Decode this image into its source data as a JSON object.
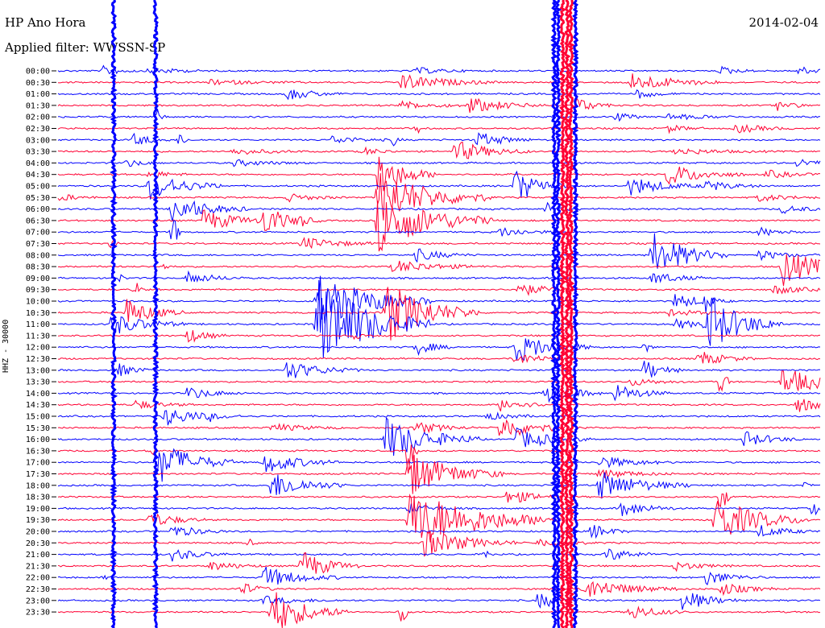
{
  "header": {
    "title": "HP Ano Hora",
    "filter": "Applied filter: WWSSN-SP",
    "date": "2014-02-04"
  },
  "colors": {
    "odd": "#0000ff",
    "even": "#ff0033",
    "background": "#ffffff"
  },
  "chart_data": {
    "type": "line",
    "title": "HP Ano Hora",
    "subtitle": "Applied filter: WWSSN-SP",
    "ylabel": "HHZ - 30000",
    "date": "2014-02-04",
    "row_labels": [
      "00:00",
      "00:30",
      "01:00",
      "01:30",
      "02:00",
      "02:30",
      "03:00",
      "03:30",
      "04:00",
      "04:30",
      "05:00",
      "05:30",
      "06:00",
      "06:30",
      "07:00",
      "07:30",
      "08:00",
      "08:30",
      "09:00",
      "09:30",
      "10:00",
      "10:30",
      "11:00",
      "11:30",
      "12:00",
      "12:30",
      "13:00",
      "13:30",
      "14:00",
      "14:30",
      "15:00",
      "15:30",
      "16:00",
      "16:30",
      "17:00",
      "17:30",
      "18:00",
      "18:30",
      "19:00",
      "19:30",
      "20:00",
      "20:30",
      "21:00",
      "21:30",
      "22:00",
      "22:30",
      "23:00",
      "23:30"
    ],
    "series_colors": [
      "#0000ff",
      "#ff0033"
    ],
    "grid": false,
    "events": [
      {
        "row": 0,
        "x": 0.06,
        "amp": 6,
        "dur": 0.02
      },
      {
        "row": 0,
        "x": 0.12,
        "amp": 5,
        "dur": 0.03
      },
      {
        "row": 0,
        "x": 0.47,
        "amp": 4,
        "dur": 0.03
      },
      {
        "row": 0,
        "x": 0.87,
        "amp": 5,
        "dur": 0.02
      },
      {
        "row": 0,
        "x": 0.97,
        "amp": 5,
        "dur": 0.03
      },
      {
        "row": 1,
        "x": 0.45,
        "amp": 10,
        "dur": 0.05
      },
      {
        "row": 1,
        "x": 0.75,
        "amp": 12,
        "dur": 0.05
      },
      {
        "row": 1,
        "x": 0.2,
        "amp": 3,
        "dur": 0.05
      },
      {
        "row": 2,
        "x": 0.3,
        "amp": 8,
        "dur": 0.03
      },
      {
        "row": 2,
        "x": 0.76,
        "amp": 6,
        "dur": 0.02
      },
      {
        "row": 3,
        "x": 0.54,
        "amp": 10,
        "dur": 0.04
      },
      {
        "row": 3,
        "x": 0.45,
        "amp": 5,
        "dur": 0.04
      },
      {
        "row": 3,
        "x": 0.68,
        "amp": 10,
        "dur": 0.02
      },
      {
        "row": 3,
        "x": 0.94,
        "amp": 7,
        "dur": 0.02
      },
      {
        "row": 4,
        "x": 0.73,
        "amp": 6,
        "dur": 0.02
      },
      {
        "row": 4,
        "x": 0.8,
        "amp": 4,
        "dur": 0.04
      },
      {
        "row": 4,
        "x": 0.13,
        "amp": 10,
        "dur": 0.005
      },
      {
        "row": 5,
        "x": 0.47,
        "amp": 10,
        "dur": 0.005
      },
      {
        "row": 5,
        "x": 0.89,
        "amp": 6,
        "dur": 0.03
      },
      {
        "row": 5,
        "x": 0.8,
        "amp": 5,
        "dur": 0.02
      },
      {
        "row": 6,
        "x": 0.1,
        "amp": 8,
        "dur": 0.02
      },
      {
        "row": 6,
        "x": 0.16,
        "amp": 12,
        "dur": 0.005
      },
      {
        "row": 6,
        "x": 0.36,
        "amp": 5,
        "dur": 0.03
      },
      {
        "row": 6,
        "x": 0.55,
        "amp": 10,
        "dur": 0.03
      },
      {
        "row": 6,
        "x": 0.44,
        "amp": 8,
        "dur": 0.005
      },
      {
        "row": 7,
        "x": 0.4,
        "amp": 5,
        "dur": 0.02
      },
      {
        "row": 7,
        "x": 0.23,
        "amp": 4,
        "dur": 0.04
      },
      {
        "row": 7,
        "x": 0.52,
        "amp": 14,
        "dur": 0.04
      },
      {
        "row": 7,
        "x": 0.81,
        "amp": 4,
        "dur": 0.05
      },
      {
        "row": 8,
        "x": 0.09,
        "amp": 5,
        "dur": 0.02
      },
      {
        "row": 8,
        "x": 0.23,
        "amp": 4,
        "dur": 0.04
      },
      {
        "row": 8,
        "x": 0.97,
        "amp": 5,
        "dur": 0.03
      },
      {
        "row": 9,
        "x": 0.12,
        "amp": 6,
        "dur": 0.02
      },
      {
        "row": 9,
        "x": 0.42,
        "amp": 30,
        "dur": 0.03
      },
      {
        "row": 9,
        "x": 0.8,
        "amp": 14,
        "dur": 0.04
      },
      {
        "row": 9,
        "x": 0.93,
        "amp": 5,
        "dur": 0.03
      },
      {
        "row": 10,
        "x": 0.12,
        "amp": 18,
        "dur": 0.04
      },
      {
        "row": 10,
        "x": 0.6,
        "amp": 22,
        "dur": 0.03
      },
      {
        "row": 10,
        "x": 0.75,
        "amp": 12,
        "dur": 0.04
      },
      {
        "row": 10,
        "x": 0.85,
        "amp": 7,
        "dur": 0.03
      },
      {
        "row": 11,
        "x": 0.0,
        "amp": 5,
        "dur": 0.02
      },
      {
        "row": 11,
        "x": 0.3,
        "amp": 5,
        "dur": 0.03
      },
      {
        "row": 11,
        "x": 0.42,
        "amp": 35,
        "dur": 0.06
      },
      {
        "row": 11,
        "x": 0.92,
        "amp": 5,
        "dur": 0.03
      },
      {
        "row": 12,
        "x": 0.64,
        "amp": 8,
        "dur": 0.02
      },
      {
        "row": 12,
        "x": 0.15,
        "amp": 18,
        "dur": 0.04
      },
      {
        "row": 12,
        "x": 0.95,
        "amp": 5,
        "dur": 0.03
      },
      {
        "row": 13,
        "x": 0.19,
        "amp": 14,
        "dur": 0.04
      },
      {
        "row": 13,
        "x": 0.27,
        "amp": 18,
        "dur": 0.03
      },
      {
        "row": 13,
        "x": 0.42,
        "amp": 40,
        "dur": 0.06
      },
      {
        "row": 13,
        "x": 0.32,
        "amp": 6,
        "dur": 0.005
      },
      {
        "row": 14,
        "x": 0.15,
        "amp": 30,
        "dur": 0.005
      },
      {
        "row": 14,
        "x": 0.58,
        "amp": 6,
        "dur": 0.03
      },
      {
        "row": 14,
        "x": 0.92,
        "amp": 6,
        "dur": 0.02
      },
      {
        "row": 15,
        "x": 0.07,
        "amp": 8,
        "dur": 0.005
      },
      {
        "row": 15,
        "x": 0.32,
        "amp": 8,
        "dur": 0.04
      },
      {
        "row": 16,
        "x": 0.78,
        "amp": 30,
        "dur": 0.04
      },
      {
        "row": 16,
        "x": 0.47,
        "amp": 8,
        "dur": 0.03
      },
      {
        "row": 16,
        "x": 0.92,
        "amp": 6,
        "dur": 0.03
      },
      {
        "row": 17,
        "x": 0.95,
        "amp": 25,
        "dur": 0.04
      },
      {
        "row": 17,
        "x": 0.44,
        "amp": 8,
        "dur": 0.05
      },
      {
        "row": 17,
        "x": 0.14,
        "amp": 5,
        "dur": 0.005
      },
      {
        "row": 18,
        "x": 0.17,
        "amp": 8,
        "dur": 0.03
      },
      {
        "row": 18,
        "x": 0.08,
        "amp": 6,
        "dur": 0.005
      },
      {
        "row": 18,
        "x": 0.78,
        "amp": 8,
        "dur": 0.03
      },
      {
        "row": 19,
        "x": 0.6,
        "amp": 10,
        "dur": 0.03
      },
      {
        "row": 19,
        "x": 0.1,
        "amp": 16,
        "dur": 0.005
      },
      {
        "row": 19,
        "x": 0.94,
        "amp": 6,
        "dur": 0.03
      },
      {
        "row": 20,
        "x": 0.34,
        "amp": 35,
        "dur": 0.06
      },
      {
        "row": 20,
        "x": 0.81,
        "amp": 10,
        "dur": 0.03
      },
      {
        "row": 20,
        "x": 0.85,
        "amp": 18,
        "dur": 0.005
      },
      {
        "row": 21,
        "x": 0.09,
        "amp": 18,
        "dur": 0.03
      },
      {
        "row": 21,
        "x": 0.43,
        "amp": 40,
        "dur": 0.05
      },
      {
        "row": 21,
        "x": 0.8,
        "amp": 4,
        "dur": 0.04
      },
      {
        "row": 22,
        "x": 0.07,
        "amp": 14,
        "dur": 0.04
      },
      {
        "row": 22,
        "x": 0.34,
        "amp": 60,
        "dur": 0.06
      },
      {
        "row": 22,
        "x": 0.85,
        "amp": 40,
        "dur": 0.04
      },
      {
        "row": 22,
        "x": 0.81,
        "amp": 6,
        "dur": 0.03
      },
      {
        "row": 23,
        "x": 0.17,
        "amp": 10,
        "dur": 0.02
      },
      {
        "row": 23,
        "x": 0.39,
        "amp": 6,
        "dur": 0.005
      },
      {
        "row": 24,
        "x": 0.47,
        "amp": 10,
        "dur": 0.02
      },
      {
        "row": 24,
        "x": 0.6,
        "amp": 20,
        "dur": 0.04
      },
      {
        "row": 24,
        "x": 0.77,
        "amp": 10,
        "dur": 0.005
      },
      {
        "row": 25,
        "x": 0.6,
        "amp": 8,
        "dur": 0.03
      },
      {
        "row": 25,
        "x": 0.84,
        "amp": 10,
        "dur": 0.03
      },
      {
        "row": 26,
        "x": 0.3,
        "amp": 12,
        "dur": 0.04
      },
      {
        "row": 26,
        "x": 0.77,
        "amp": 14,
        "dur": 0.02
      },
      {
        "row": 26,
        "x": 0.08,
        "amp": 8,
        "dur": 0.02
      },
      {
        "row": 27,
        "x": 0.75,
        "amp": 5,
        "dur": 0.03
      },
      {
        "row": 27,
        "x": 0.95,
        "amp": 18,
        "dur": 0.05
      },
      {
        "row": 27,
        "x": 0.87,
        "amp": 30,
        "dur": 0.005
      },
      {
        "row": 28,
        "x": 0.17,
        "amp": 8,
        "dur": 0.03
      },
      {
        "row": 28,
        "x": 0.64,
        "amp": 14,
        "dur": 0.03
      },
      {
        "row": 28,
        "x": 0.73,
        "amp": 12,
        "dur": 0.03
      },
      {
        "row": 29,
        "x": 0.1,
        "amp": 6,
        "dur": 0.03
      },
      {
        "row": 29,
        "x": 0.58,
        "amp": 8,
        "dur": 0.03
      },
      {
        "row": 29,
        "x": 0.97,
        "amp": 10,
        "dur": 0.03
      },
      {
        "row": 30,
        "x": 0.14,
        "amp": 12,
        "dur": 0.04
      },
      {
        "row": 30,
        "x": 0.2,
        "amp": 4,
        "dur": 0.005
      },
      {
        "row": 30,
        "x": 0.56,
        "amp": 5,
        "dur": 0.03
      },
      {
        "row": 31,
        "x": 0.58,
        "amp": 16,
        "dur": 0.04
      },
      {
        "row": 31,
        "x": 0.47,
        "amp": 8,
        "dur": 0.03
      },
      {
        "row": 31,
        "x": 0.28,
        "amp": 5,
        "dur": 0.04
      },
      {
        "row": 32,
        "x": 0.43,
        "amp": 28,
        "dur": 0.05
      },
      {
        "row": 32,
        "x": 0.6,
        "amp": 14,
        "dur": 0.04
      },
      {
        "row": 32,
        "x": 0.9,
        "amp": 10,
        "dur": 0.03
      },
      {
        "row": 33,
        "x": 0.12,
        "amp": 14,
        "dur": 0.005
      },
      {
        "row": 33,
        "x": 0.46,
        "amp": 40,
        "dur": 0.005
      },
      {
        "row": 34,
        "x": 0.13,
        "amp": 30,
        "dur": 0.04
      },
      {
        "row": 34,
        "x": 0.27,
        "amp": 14,
        "dur": 0.04
      },
      {
        "row": 34,
        "x": 0.71,
        "amp": 8,
        "dur": 0.04
      },
      {
        "row": 35,
        "x": 0.46,
        "amp": 30,
        "dur": 0.05
      },
      {
        "row": 35,
        "x": 0.71,
        "amp": 6,
        "dur": 0.04
      },
      {
        "row": 36,
        "x": 0.28,
        "amp": 18,
        "dur": 0.04
      },
      {
        "row": 36,
        "x": 0.71,
        "amp": 18,
        "dur": 0.05
      },
      {
        "row": 36,
        "x": 0.98,
        "amp": 6,
        "dur": 0.005
      },
      {
        "row": 37,
        "x": 0.59,
        "amp": 10,
        "dur": 0.03
      },
      {
        "row": 37,
        "x": 0.87,
        "amp": 30,
        "dur": 0.005
      },
      {
        "row": 38,
        "x": 0.74,
        "amp": 10,
        "dur": 0.03
      },
      {
        "row": 38,
        "x": 0.46,
        "amp": 6,
        "dur": 0.03
      },
      {
        "row": 38,
        "x": 0.99,
        "amp": 16,
        "dur": 0.005
      },
      {
        "row": 39,
        "x": 0.46,
        "amp": 40,
        "dur": 0.08
      },
      {
        "row": 39,
        "x": 0.86,
        "amp": 30,
        "dur": 0.05
      },
      {
        "row": 39,
        "x": 0.12,
        "amp": 10,
        "dur": 0.03
      },
      {
        "row": 40,
        "x": 0.15,
        "amp": 8,
        "dur": 0.03
      },
      {
        "row": 40,
        "x": 0.92,
        "amp": 8,
        "dur": 0.03
      },
      {
        "row": 40,
        "x": 0.7,
        "amp": 10,
        "dur": 0.02
      },
      {
        "row": 41,
        "x": 0.48,
        "amp": 18,
        "dur": 0.05
      },
      {
        "row": 41,
        "x": 0.25,
        "amp": 6,
        "dur": 0.005
      },
      {
        "row": 41,
        "x": 0.63,
        "amp": 6,
        "dur": 0.03
      },
      {
        "row": 42,
        "x": 0.15,
        "amp": 8,
        "dur": 0.03
      },
      {
        "row": 42,
        "x": 0.56,
        "amp": 10,
        "dur": 0.005
      },
      {
        "row": 42,
        "x": 0.72,
        "amp": 8,
        "dur": 0.03
      },
      {
        "row": 43,
        "x": 0.32,
        "amp": 20,
        "dur": 0.03
      },
      {
        "row": 43,
        "x": 0.2,
        "amp": 6,
        "dur": 0.03
      },
      {
        "row": 43,
        "x": 0.81,
        "amp": 6,
        "dur": 0.03
      },
      {
        "row": 44,
        "x": 0.27,
        "amp": 14,
        "dur": 0.04
      },
      {
        "row": 44,
        "x": 0.85,
        "amp": 10,
        "dur": 0.03
      },
      {
        "row": 44,
        "x": 0.06,
        "amp": 5,
        "dur": 0.005
      },
      {
        "row": 45,
        "x": 0.24,
        "amp": 8,
        "dur": 0.02
      },
      {
        "row": 45,
        "x": 0.69,
        "amp": 14,
        "dur": 0.05
      },
      {
        "row": 45,
        "x": 0.87,
        "amp": 8,
        "dur": 0.03
      },
      {
        "row": 46,
        "x": 0.63,
        "amp": 10,
        "dur": 0.03
      },
      {
        "row": 46,
        "x": 0.82,
        "amp": 14,
        "dur": 0.03
      },
      {
        "row": 46,
        "x": 0.27,
        "amp": 5,
        "dur": 0.04
      },
      {
        "row": 47,
        "x": 0.28,
        "amp": 30,
        "dur": 0.04
      },
      {
        "row": 47,
        "x": 0.75,
        "amp": 10,
        "dur": 0.03
      },
      {
        "row": 47,
        "x": 0.45,
        "amp": 20,
        "dur": 0.005
      }
    ],
    "vertical_traces": [
      {
        "x_frac": 0.073,
        "color": "#0000ff"
      },
      {
        "x_frac": 0.128,
        "color": "#0000ff"
      },
      {
        "x_frac": 0.651,
        "color": "#0000ff"
      },
      {
        "x_frac": 0.656,
        "color": "#0000ff"
      },
      {
        "x_frac": 0.662,
        "color": "#ff0033"
      },
      {
        "x_frac": 0.668,
        "color": "#ff0033"
      },
      {
        "x_frac": 0.673,
        "color": "#ff0033"
      },
      {
        "x_frac": 0.679,
        "color": "#0000ff"
      }
    ]
  }
}
